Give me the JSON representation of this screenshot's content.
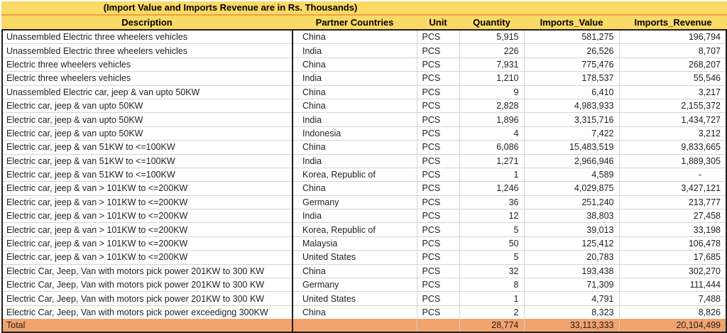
{
  "title": "(Import Value and Imports Revenue are in Rs. Thousands)",
  "columns": [
    {
      "label": "Description"
    },
    {
      "label": "Partner Countries"
    },
    {
      "label": "Unit"
    },
    {
      "label": "Quantity"
    },
    {
      "label": "Imports_Value"
    },
    {
      "label": "Imports_Revenue"
    }
  ],
  "rows": [
    {
      "description": "Unassembled Electric three wheelers vehicles",
      "country": "China",
      "unit": "PCS",
      "quantity": "5,915",
      "value": "581,275",
      "revenue": "196,794"
    },
    {
      "description": "Unassembled Electric three wheelers vehicles",
      "country": "India",
      "unit": "PCS",
      "quantity": "226",
      "value": "26,526",
      "revenue": "8,707"
    },
    {
      "description": "Electric three wheelers vehicles",
      "country": "China",
      "unit": "PCS",
      "quantity": "7,931",
      "value": "775,476",
      "revenue": "268,207"
    },
    {
      "description": "Electric three wheelers vehicles",
      "country": "India",
      "unit": "PCS",
      "quantity": "1,210",
      "value": "178,537",
      "revenue": "55,546"
    },
    {
      "description": "Unassembled Electric car, jeep & van upto 50KW",
      "country": "China",
      "unit": "PCS",
      "quantity": "9",
      "value": "6,410",
      "revenue": "3,217"
    },
    {
      "description": "Electric car, jeep & van upto 50KW",
      "country": "China",
      "unit": "PCS",
      "quantity": "2,828",
      "value": "4,983,933",
      "revenue": "2,155,372"
    },
    {
      "description": "Electric car, jeep & van upto 50KW",
      "country": "India",
      "unit": "PCS",
      "quantity": "1,896",
      "value": "3,315,716",
      "revenue": "1,434,727"
    },
    {
      "description": "Electric car, jeep & van upto 50KW",
      "country": "Indonesia",
      "unit": "PCS",
      "quantity": "4",
      "value": "7,422",
      "revenue": "3,212"
    },
    {
      "description": "Electric car, jeep & van 51KW to <=100KW",
      "country": "China",
      "unit": "PCS",
      "quantity": "6,086",
      "value": "15,483,519",
      "revenue": "9,833,665"
    },
    {
      "description": "Electric car, jeep & van 51KW to <=100KW",
      "country": "India",
      "unit": "PCS",
      "quantity": "1,271",
      "value": "2,966,946",
      "revenue": "1,889,305"
    },
    {
      "description": "Electric car, jeep & van 51KW to <=100KW",
      "country": "Korea, Republic of",
      "unit": "PCS",
      "quantity": "1",
      "value": "4,589",
      "revenue": "-"
    },
    {
      "description": "Electric car, jeep & van > 101KW to <=200KW",
      "country": "China",
      "unit": "PCS",
      "quantity": "1,246",
      "value": "4,029,875",
      "revenue": "3,427,121"
    },
    {
      "description": "Electric car, jeep & van > 101KW to <=200KW",
      "country": "Germany",
      "unit": "PCS",
      "quantity": "36",
      "value": "251,240",
      "revenue": "213,777"
    },
    {
      "description": "Electric car, jeep & van > 101KW to <=200KW",
      "country": "India",
      "unit": "PCS",
      "quantity": "12",
      "value": "38,803",
      "revenue": "27,458"
    },
    {
      "description": "Electric car, jeep & van > 101KW to <=200KW",
      "country": "Korea, Republic of",
      "unit": "PCS",
      "quantity": "5",
      "value": "39,013",
      "revenue": "33,198"
    },
    {
      "description": "Electric car, jeep & van > 101KW to <=200KW",
      "country": "Malaysia",
      "unit": "PCS",
      "quantity": "50",
      "value": "125,412",
      "revenue": "106,478"
    },
    {
      "description": "Electric car, jeep & van > 101KW to <=200KW",
      "country": "United States",
      "unit": "PCS",
      "quantity": "5",
      "value": "20,783",
      "revenue": "17,685"
    },
    {
      "description": "Electric Car, Jeep, Van with motors pick power  201KW to 300 KW",
      "country": "China",
      "unit": "PCS",
      "quantity": "32",
      "value": "193,438",
      "revenue": "302,270"
    },
    {
      "description": "Electric Car, Jeep, Van with motors pick power  201KW to 300 KW",
      "country": "Germany",
      "unit": "PCS",
      "quantity": "8",
      "value": "71,309",
      "revenue": "111,444"
    },
    {
      "description": "Electric Car, Jeep, Van with motors pick power  201KW to 300 KW",
      "country": "United States",
      "unit": "PCS",
      "quantity": "1",
      "value": "4,791",
      "revenue": "7,488"
    },
    {
      "description": "Electric Car, Jeep, Van with motors pick power exceedigng 300KW",
      "country": "China",
      "unit": "PCS",
      "quantity": "2",
      "value": "8,323",
      "revenue": "8,826"
    }
  ],
  "total": {
    "label": "Total",
    "quantity": "28,774",
    "value": "33,113,333",
    "revenue": "20,104,499"
  },
  "colors": {
    "header_yellow": "#FBD966",
    "divider_orange": "#E8A33D",
    "total_orange": "#F2A36E"
  }
}
